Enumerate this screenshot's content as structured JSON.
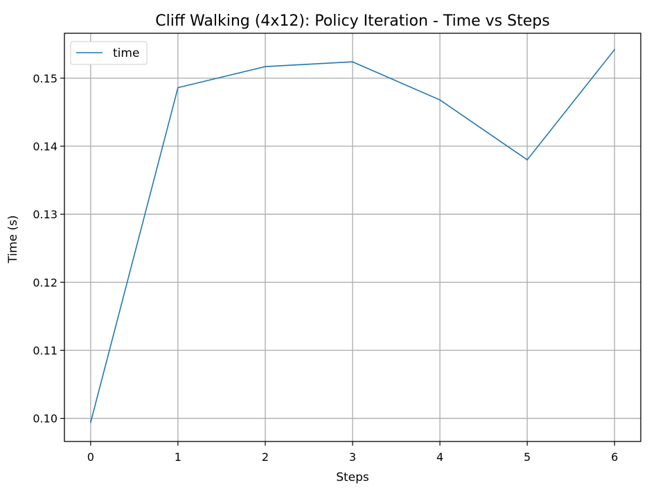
{
  "chart_data": {
    "type": "line",
    "title": "Cliff Walking (4x12): Policy Iteration - Time vs Steps",
    "xlabel": "Steps",
    "ylabel": "Time (s)",
    "xlim": [
      -0.3,
      6.3
    ],
    "ylim": [
      0.0966,
      0.1566
    ],
    "xticks": [
      0,
      1,
      2,
      3,
      4,
      5,
      6
    ],
    "yticks": [
      0.1,
      0.11,
      0.12,
      0.13,
      0.14,
      0.15
    ],
    "ytick_labels": [
      "0.10",
      "0.11",
      "0.12",
      "0.13",
      "0.14",
      "0.15"
    ],
    "grid": true,
    "legend_position": "top-left",
    "series": [
      {
        "name": "time",
        "color": "#1f77b4",
        "x": [
          0,
          1,
          2,
          3,
          4,
          5,
          6
        ],
        "values": [
          0.0994,
          0.1486,
          0.1517,
          0.1524,
          0.1468,
          0.138,
          0.1542
        ]
      }
    ]
  }
}
